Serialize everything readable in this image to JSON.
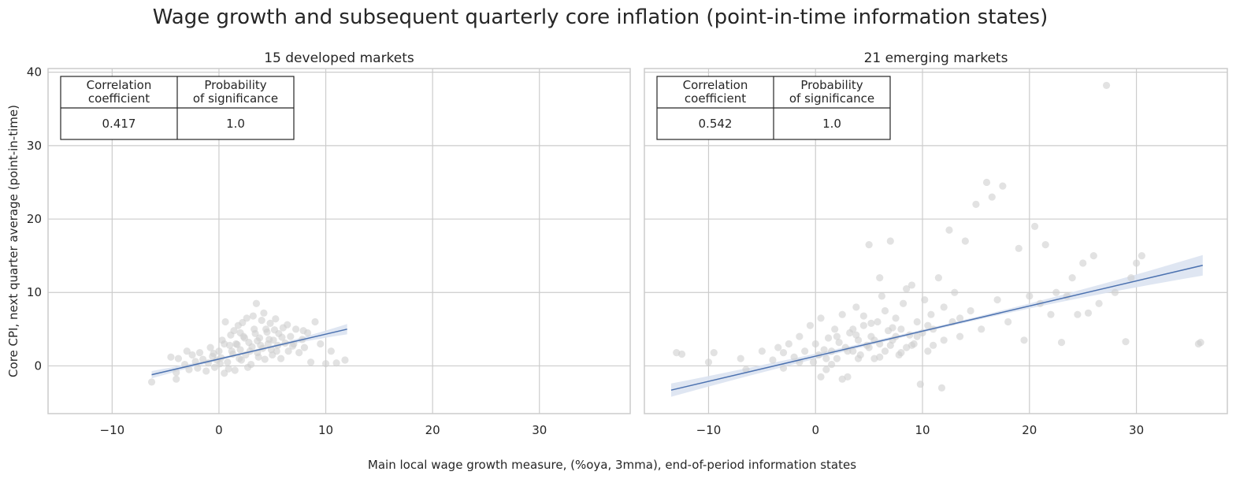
{
  "figure": {
    "title": "Wage growth and subsequent quarterly core inflation (point-in-time information states)",
    "xlabel": "Main local wage growth measure, (%oya, 3mma), end-of-period information states",
    "ylabel": "Core CPI, next quarter average (point-in-time)"
  },
  "colors": {
    "points": "#cfcfcf",
    "regression_line": "#4c72b0",
    "confidence_band": "#dbe3f1",
    "grid": "#cccccc",
    "frame": "#cccccc"
  },
  "chart_data": [
    {
      "type": "scatter",
      "title": "15 developed markets",
      "xlim": [
        -16,
        38.5
      ],
      "ylim": [
        -6.5,
        40.5
      ],
      "xticks": [
        -10,
        0,
        10,
        20,
        30
      ],
      "yticks": [
        0,
        10,
        20,
        30,
        40
      ],
      "grid": true,
      "stats_table": {
        "headers": [
          "Correlation\ncoefficient",
          "Probability\nof significance"
        ],
        "values": [
          "0.417",
          "1.0"
        ],
        "placement": "top-left"
      },
      "regression": {
        "x": [
          -6.3,
          12.0
        ],
        "y": [
          -1.2,
          5.0
        ],
        "band_halfwidth_ends": [
          0.5,
          0.7
        ],
        "band_halfwidth_center": 0.15
      },
      "points": [
        [
          -6.3,
          -2.2
        ],
        [
          -4.5,
          1.2
        ],
        [
          -4.0,
          -1.8
        ],
        [
          -4.0,
          -0.9
        ],
        [
          -3.8,
          1.0
        ],
        [
          -3.2,
          0.2
        ],
        [
          -3.0,
          2.0
        ],
        [
          -2.8,
          -0.5
        ],
        [
          -2.5,
          1.5
        ],
        [
          -2.2,
          0.6
        ],
        [
          -2.0,
          -0.3
        ],
        [
          -1.8,
          1.8
        ],
        [
          -1.5,
          0.9
        ],
        [
          -1.2,
          -0.7
        ],
        [
          -1.0,
          0.4
        ],
        [
          -0.8,
          2.5
        ],
        [
          -0.6,
          1.3
        ],
        [
          -0.4,
          -0.2
        ],
        [
          -0.2,
          0.8
        ],
        [
          0.0,
          2.0
        ],
        [
          0.2,
          1.1
        ],
        [
          0.3,
          3.5
        ],
        [
          0.5,
          -1.0
        ],
        [
          0.6,
          6.0
        ],
        [
          0.8,
          0.5
        ],
        [
          1.0,
          2.8
        ],
        [
          1.1,
          4.2
        ],
        [
          1.3,
          1.6
        ],
        [
          1.5,
          -0.6
        ],
        [
          1.6,
          3.0
        ],
        [
          1.8,
          5.5
        ],
        [
          2.0,
          2.2
        ],
        [
          2.1,
          0.8
        ],
        [
          2.3,
          4.0
        ],
        [
          2.5,
          1.5
        ],
        [
          2.6,
          6.5
        ],
        [
          2.8,
          3.2
        ],
        [
          3.0,
          0.2
        ],
        [
          3.1,
          2.6
        ],
        [
          3.3,
          5.0
        ],
        [
          3.5,
          8.5
        ],
        [
          3.6,
          1.8
        ],
        [
          3.8,
          3.8
        ],
        [
          4.0,
          6.2
        ],
        [
          4.1,
          2.4
        ],
        [
          4.3,
          0.9
        ],
        [
          4.5,
          4.6
        ],
        [
          4.6,
          3.0
        ],
        [
          4.8,
          5.8
        ],
        [
          5.0,
          1.5
        ],
        [
          5.1,
          3.5
        ],
        [
          5.3,
          6.4
        ],
        [
          5.5,
          2.8
        ],
        [
          5.6,
          4.4
        ],
        [
          5.8,
          1.0
        ],
        [
          6.0,
          5.2
        ],
        [
          6.2,
          3.1
        ],
        [
          6.5,
          2.0
        ],
        [
          6.7,
          4.0
        ],
        [
          7.0,
          3.0
        ],
        [
          7.2,
          5.0
        ],
        [
          7.5,
          1.8
        ],
        [
          7.8,
          3.6
        ],
        [
          8.0,
          2.5
        ],
        [
          8.3,
          4.5
        ],
        [
          8.6,
          0.5
        ],
        [
          9.0,
          6.0
        ],
        [
          9.5,
          3.0
        ],
        [
          10.0,
          0.3
        ],
        [
          10.5,
          2.0
        ],
        [
          11.0,
          0.4
        ],
        [
          11.8,
          0.8
        ],
        [
          0.5,
          3.0
        ],
        [
          1.2,
          2.0
        ],
        [
          2.4,
          3.8
        ],
        [
          3.4,
          4.4
        ],
        [
          4.4,
          5.0
        ],
        [
          1.9,
          1.0
        ],
        [
          2.9,
          2.0
        ],
        [
          3.9,
          2.8
        ],
        [
          0.1,
          0.3
        ],
        [
          -0.5,
          1.7
        ],
        [
          1.4,
          4.8
        ],
        [
          2.2,
          5.9
        ],
        [
          3.2,
          6.8
        ],
        [
          4.2,
          7.2
        ],
        [
          5.2,
          4.9
        ],
        [
          6.4,
          5.6
        ],
        [
          0.9,
          -0.4
        ],
        [
          2.7,
          -0.2
        ],
        [
          3.7,
          1.2
        ],
        [
          4.9,
          2.2
        ],
        [
          5.9,
          3.9
        ],
        [
          6.9,
          2.7
        ],
        [
          7.9,
          4.8
        ],
        [
          1.7,
          2.9
        ],
        [
          2.0,
          4.5
        ],
        [
          3.6,
          3.4
        ],
        [
          4.7,
          3.6
        ],
        [
          5.4,
          2.0
        ]
      ]
    },
    {
      "type": "scatter",
      "title": "21 emerging markets",
      "xlim": [
        -16,
        38.5
      ],
      "ylim": [
        -6.5,
        40.5
      ],
      "xticks": [
        -10,
        0,
        10,
        20,
        30
      ],
      "yticks": [
        0,
        10,
        20,
        30,
        40
      ],
      "grid": true,
      "stats_table": {
        "headers": [
          "Correlation\ncoefficient",
          "Probability\nof significance"
        ],
        "values": [
          "0.542",
          "1.0"
        ],
        "placement": "top-left"
      },
      "regression": {
        "x": [
          -13.5,
          36.2
        ],
        "y": [
          -3.3,
          13.7
        ],
        "band_halfwidth_ends": [
          0.9,
          1.4
        ],
        "band_halfwidth_center": 0.2
      },
      "points": [
        [
          -13.0,
          1.8
        ],
        [
          -12.5,
          1.6
        ],
        [
          -10.0,
          0.5
        ],
        [
          -9.5,
          1.8
        ],
        [
          -7.0,
          1.0
        ],
        [
          -6.5,
          -0.5
        ],
        [
          -5.0,
          2.0
        ],
        [
          -4.0,
          0.8
        ],
        [
          -3.5,
          2.5
        ],
        [
          -3.0,
          -0.3
        ],
        [
          -2.5,
          3.0
        ],
        [
          -2.0,
          1.2
        ],
        [
          -1.5,
          4.0
        ],
        [
          -1.0,
          2.0
        ],
        [
          -0.5,
          5.5
        ],
        [
          -0.2,
          0.5
        ],
        [
          0.0,
          3.0
        ],
        [
          0.3,
          1.5
        ],
        [
          0.5,
          6.5
        ],
        [
          0.8,
          2.2
        ],
        [
          1.0,
          -0.5
        ],
        [
          1.2,
          3.8
        ],
        [
          1.5,
          2.0
        ],
        [
          1.8,
          5.0
        ],
        [
          2.0,
          1.0
        ],
        [
          2.2,
          3.2
        ],
        [
          2.5,
          7.0
        ],
        [
          2.8,
          2.5
        ],
        [
          3.0,
          -1.5
        ],
        [
          3.2,
          4.5
        ],
        [
          3.5,
          2.0
        ],
        [
          3.8,
          8.0
        ],
        [
          4.0,
          3.5
        ],
        [
          4.2,
          1.5
        ],
        [
          4.5,
          5.5
        ],
        [
          4.8,
          2.8
        ],
        [
          5.0,
          16.5
        ],
        [
          5.2,
          4.0
        ],
        [
          5.5,
          1.0
        ],
        [
          5.8,
          6.0
        ],
        [
          6.0,
          3.0
        ],
        [
          6.2,
          9.5
        ],
        [
          6.5,
          2.0
        ],
        [
          6.8,
          4.8
        ],
        [
          7.0,
          17.0
        ],
        [
          7.2,
          3.5
        ],
        [
          7.5,
          6.5
        ],
        [
          7.8,
          1.5
        ],
        [
          8.0,
          5.0
        ],
        [
          8.2,
          8.5
        ],
        [
          8.5,
          2.5
        ],
        [
          8.8,
          4.2
        ],
        [
          9.0,
          11.0
        ],
        [
          9.2,
          3.0
        ],
        [
          9.5,
          6.0
        ],
        [
          9.8,
          -2.5
        ],
        [
          10.0,
          4.5
        ],
        [
          10.2,
          9.0
        ],
        [
          10.5,
          2.0
        ],
        [
          10.8,
          7.0
        ],
        [
          11.0,
          5.0
        ],
        [
          11.5,
          12.0
        ],
        [
          11.8,
          -3.0
        ],
        [
          12.0,
          3.5
        ],
        [
          12.5,
          18.5
        ],
        [
          12.8,
          6.0
        ],
        [
          13.0,
          10.0
        ],
        [
          13.5,
          4.0
        ],
        [
          14.0,
          17.0
        ],
        [
          14.5,
          7.5
        ],
        [
          15.0,
          22.0
        ],
        [
          15.5,
          5.0
        ],
        [
          16.0,
          25.0
        ],
        [
          16.5,
          23.0
        ],
        [
          17.0,
          9.0
        ],
        [
          17.5,
          24.5
        ],
        [
          18.0,
          6.0
        ],
        [
          19.0,
          16.0
        ],
        [
          19.5,
          3.5
        ],
        [
          20.0,
          9.5
        ],
        [
          20.5,
          19.0
        ],
        [
          21.0,
          8.5
        ],
        [
          21.5,
          16.5
        ],
        [
          22.0,
          7.0
        ],
        [
          22.5,
          10.0
        ],
        [
          23.0,
          3.2
        ],
        [
          23.5,
          9.5
        ],
        [
          24.0,
          12.0
        ],
        [
          24.5,
          7.0
        ],
        [
          25.0,
          14.0
        ],
        [
          25.5,
          7.2
        ],
        [
          26.0,
          15.0
        ],
        [
          26.5,
          8.5
        ],
        [
          27.2,
          38.2
        ],
        [
          28.0,
          10.0
        ],
        [
          29.0,
          3.3
        ],
        [
          29.5,
          12.0
        ],
        [
          30.0,
          14.0
        ],
        [
          30.5,
          15.0
        ],
        [
          35.8,
          3.0
        ],
        [
          36.0,
          3.2
        ],
        [
          3.0,
          2.0
        ],
        [
          4.0,
          1.0
        ],
        [
          5.0,
          2.5
        ],
        [
          6.0,
          1.2
        ],
        [
          7.0,
          2.8
        ],
        [
          8.0,
          1.8
        ],
        [
          2.0,
          4.0
        ],
        [
          3.5,
          5.0
        ],
        [
          6.5,
          7.5
        ],
        [
          5.5,
          3.5
        ],
        [
          4.5,
          6.8
        ],
        [
          7.5,
          4.0
        ],
        [
          9.0,
          2.8
        ],
        [
          10.5,
          5.5
        ],
        [
          12.0,
          8.0
        ],
        [
          13.5,
          6.5
        ],
        [
          11.0,
          2.8
        ],
        [
          8.5,
          10.5
        ],
        [
          6.0,
          12.0
        ],
        [
          1.0,
          1.0
        ],
        [
          0.5,
          -1.5
        ],
        [
          2.5,
          -1.8
        ],
        [
          1.5,
          0.2
        ],
        [
          -1.5,
          0.5
        ],
        [
          -3.0,
          1.8
        ],
        [
          3.8,
          4.2
        ],
        [
          5.2,
          5.8
        ],
        [
          7.2,
          5.2
        ],
        [
          9.5,
          4.0
        ]
      ]
    }
  ]
}
